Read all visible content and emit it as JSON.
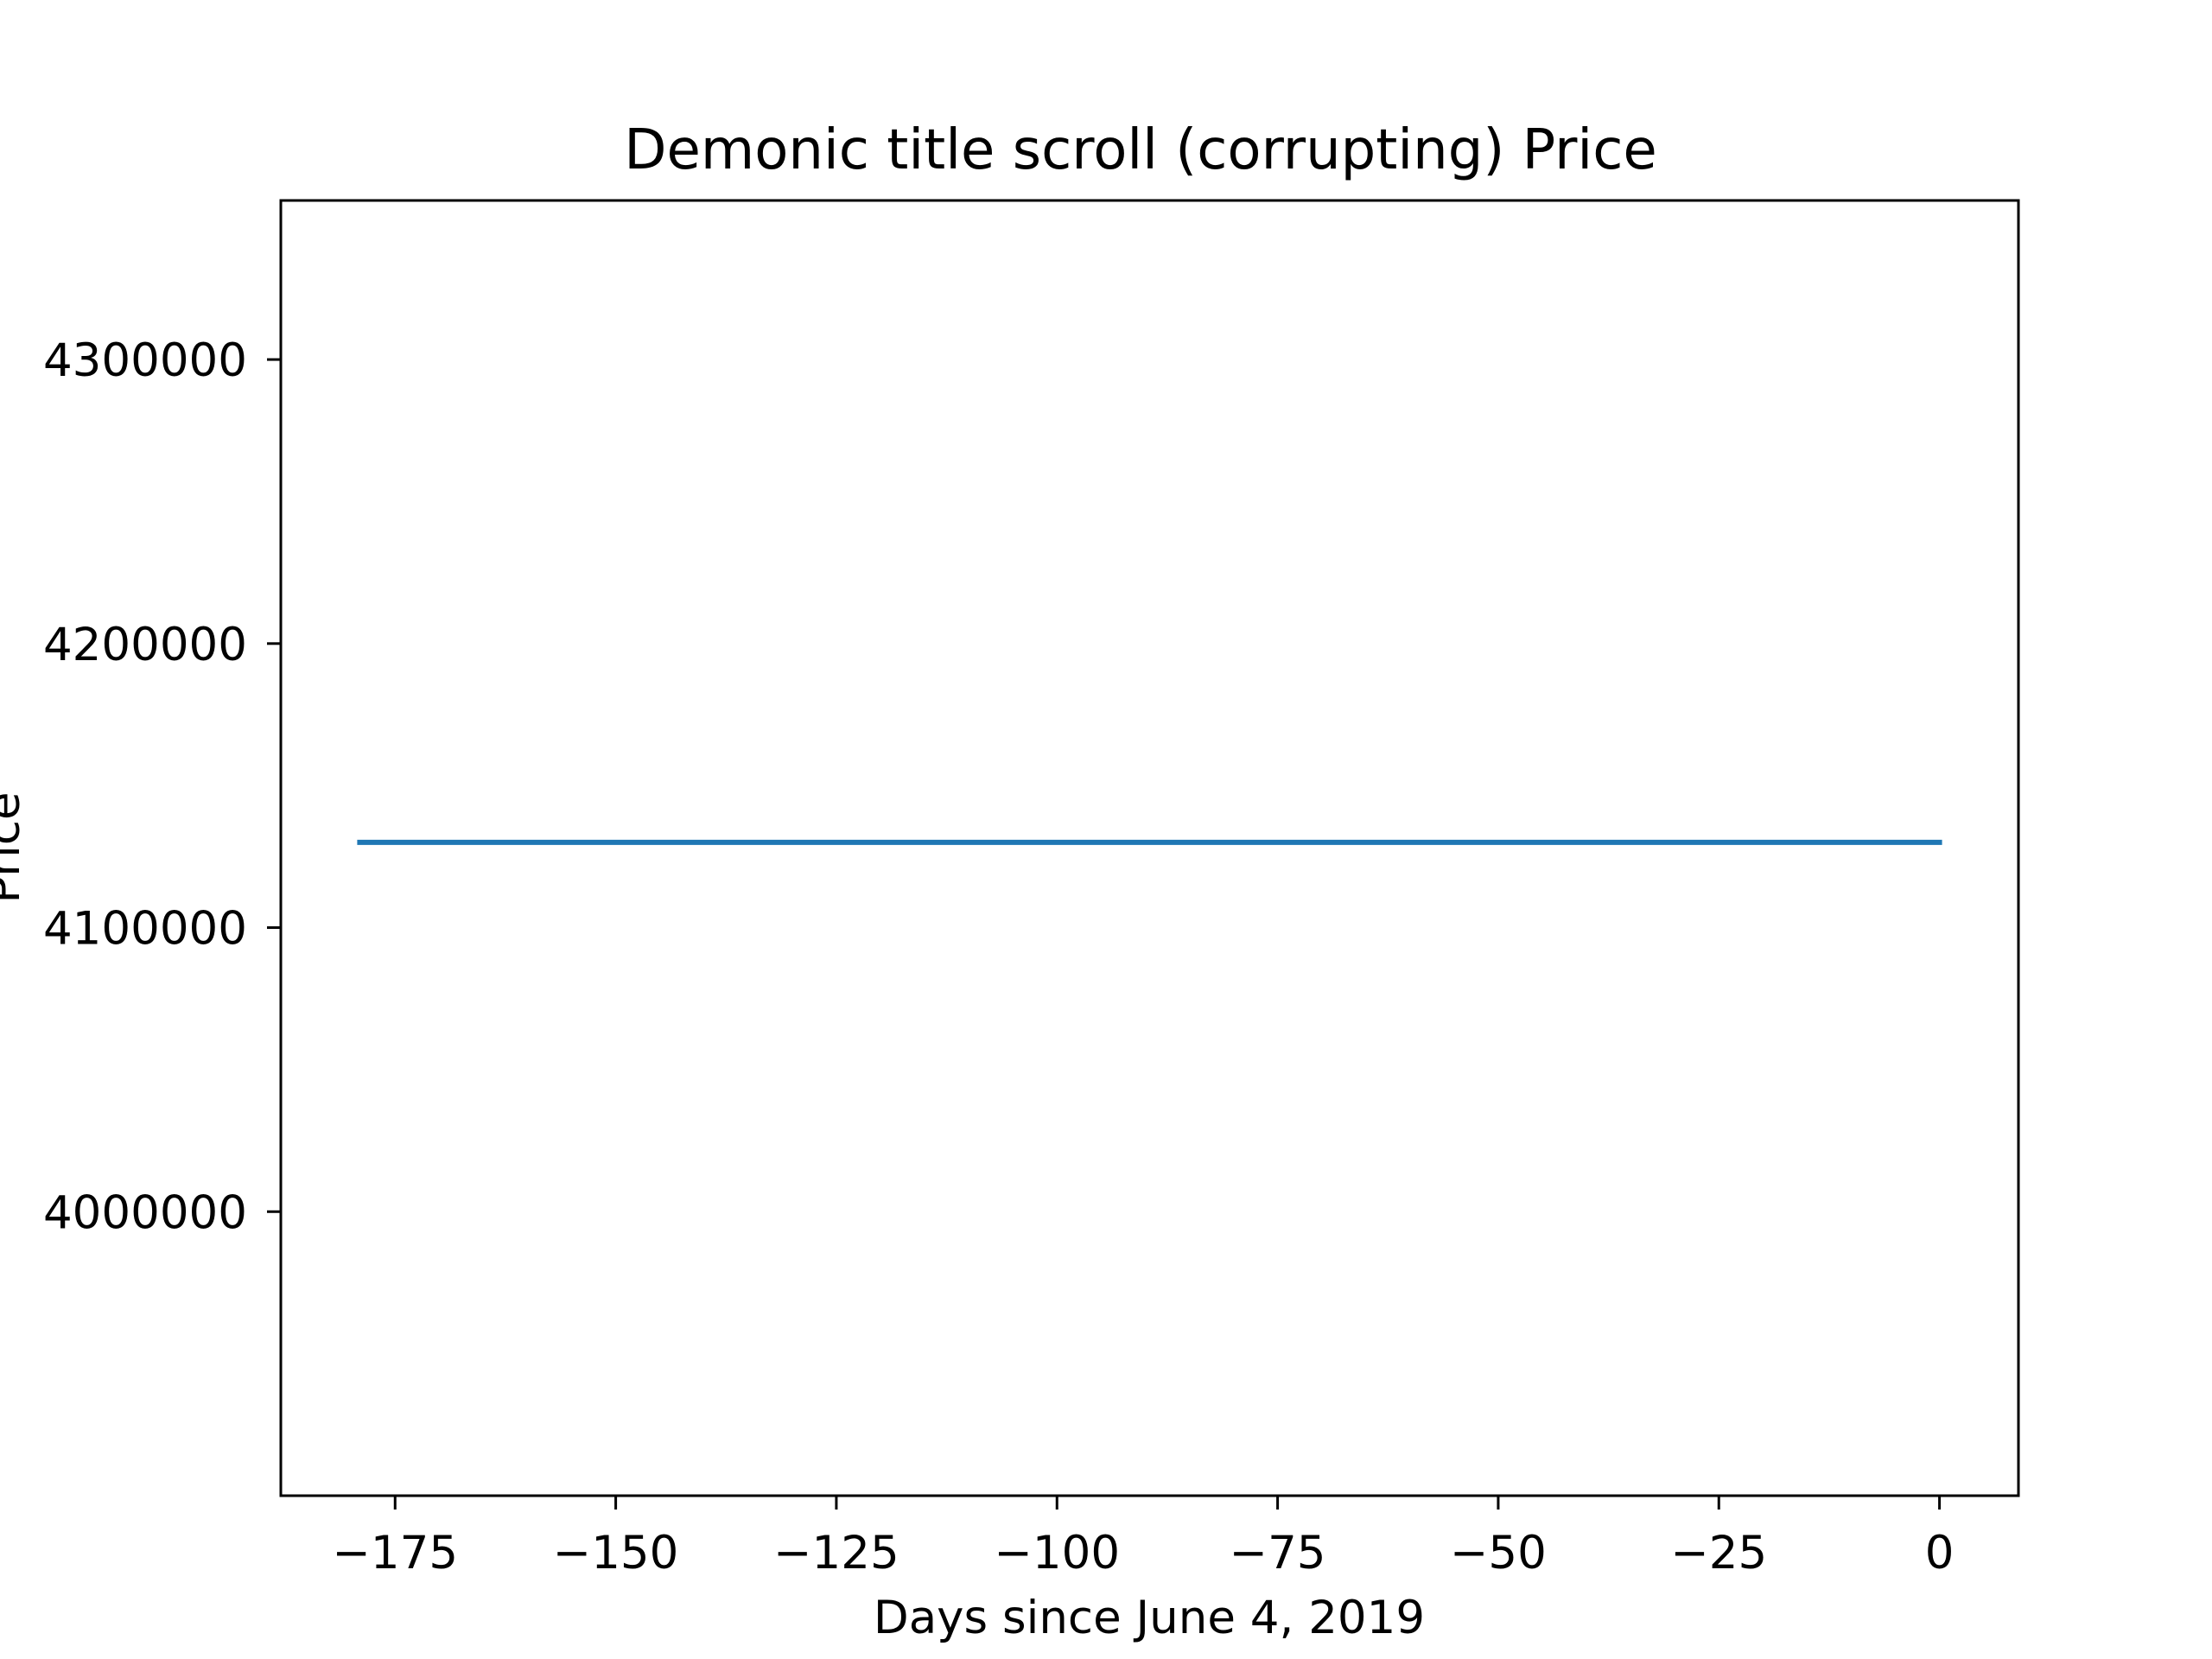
{
  "chart_data": {
    "type": "line",
    "title": "Demonic title scroll (corrupting) Price",
    "xlabel": "Days since June 4, 2019",
    "ylabel": "Price",
    "xlim": [
      -187.95,
      8.95
    ],
    "ylim": [
      3900000,
      4356000
    ],
    "xticks": [
      -175,
      -150,
      -125,
      -100,
      -75,
      -50,
      -25,
      0
    ],
    "xtick_labels": [
      "−175",
      "−150",
      "−125",
      "−100",
      "−75",
      "−50",
      "−25",
      "0"
    ],
    "yticks": [
      4000000,
      4100000,
      4200000,
      4300000
    ],
    "ytick_labels": [
      "4000000",
      "4100000",
      "4200000",
      "4300000"
    ],
    "grid": false,
    "series": [
      {
        "x": [
          -179,
          0
        ],
        "y": [
          4130000,
          4130000
        ],
        "color": "#1f77b4"
      }
    ]
  }
}
